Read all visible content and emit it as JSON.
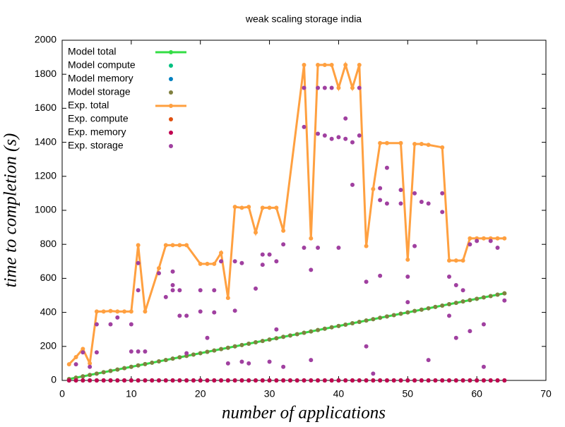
{
  "chart_data": {
    "type": "scatter",
    "title": "weak scaling storage india",
    "xlabel": "number of applications",
    "ylabel": "time to completion (s)",
    "xlim": [
      0,
      70
    ],
    "xticks": [
      0,
      10,
      20,
      30,
      40,
      50,
      60,
      70
    ],
    "ylim": [
      0,
      2000
    ],
    "yticks": [
      0,
      200,
      400,
      600,
      800,
      1000,
      1200,
      1400,
      1600,
      1800,
      2000
    ],
    "legend": "upper left",
    "series": [
      {
        "name": "Model total",
        "color": "#33dd44",
        "style": "linespoints",
        "x": [
          1,
          2,
          3,
          4,
          5,
          6,
          7,
          8,
          9,
          10,
          11,
          12,
          13,
          14,
          15,
          16,
          17,
          18,
          19,
          20,
          21,
          22,
          23,
          24,
          25,
          26,
          27,
          28,
          29,
          30,
          31,
          32,
          33,
          34,
          35,
          36,
          37,
          38,
          39,
          40,
          41,
          42,
          43,
          44,
          45,
          46,
          47,
          48,
          49,
          50,
          51,
          52,
          53,
          54,
          55,
          56,
          57,
          58,
          59,
          60,
          61,
          62,
          63,
          64
        ],
        "values": [
          8,
          16,
          24,
          32,
          40,
          48,
          56,
          64,
          72,
          80,
          88,
          96,
          104,
          112,
          120,
          128,
          136,
          144,
          152,
          160,
          168,
          176,
          184,
          192,
          200,
          208,
          216,
          224,
          232,
          240,
          248,
          256,
          264,
          272,
          280,
          288,
          296,
          304,
          312,
          320,
          328,
          336,
          344,
          352,
          360,
          368,
          376,
          384,
          392,
          400,
          408,
          416,
          424,
          432,
          440,
          448,
          456,
          464,
          472,
          480,
          488,
          496,
          504,
          512
        ]
      },
      {
        "name": "Model compute",
        "color": "#00c080",
        "style": "points",
        "x": [
          1,
          2,
          3,
          4,
          5,
          6,
          7,
          8,
          9,
          10,
          11,
          12,
          13,
          14,
          15,
          16,
          17,
          18,
          19,
          20,
          21,
          22,
          23,
          24,
          25,
          26,
          27,
          28,
          29,
          30,
          31,
          32,
          33,
          34,
          35,
          36,
          37,
          38,
          39,
          40,
          41,
          42,
          43,
          44,
          45,
          46,
          47,
          48,
          49,
          50,
          51,
          52,
          53,
          54,
          55,
          56,
          57,
          58,
          59,
          60,
          61,
          62,
          63,
          64
        ],
        "values": [
          0,
          0,
          0,
          0,
          0,
          0,
          0,
          0,
          0,
          0,
          0,
          0,
          0,
          0,
          0,
          0,
          0,
          0,
          0,
          0,
          0,
          0,
          0,
          0,
          0,
          0,
          0,
          0,
          0,
          0,
          0,
          0,
          0,
          0,
          0,
          0,
          0,
          0,
          0,
          0,
          0,
          0,
          0,
          0,
          0,
          0,
          0,
          0,
          0,
          0,
          0,
          0,
          0,
          0,
          0,
          0,
          0,
          0,
          0,
          0,
          0,
          0,
          0,
          0
        ]
      },
      {
        "name": "Model memory",
        "color": "#0080c0",
        "style": "points",
        "x": [
          1,
          2,
          3,
          4,
          5,
          6,
          7,
          8,
          9,
          10,
          11,
          12,
          13,
          14,
          15,
          16,
          17,
          18,
          19,
          20,
          21,
          22,
          23,
          24,
          25,
          26,
          27,
          28,
          29,
          30,
          31,
          32,
          33,
          34,
          35,
          36,
          37,
          38,
          39,
          40,
          41,
          42,
          43,
          44,
          45,
          46,
          47,
          48,
          49,
          50,
          51,
          52,
          53,
          54,
          55,
          56,
          57,
          58,
          59,
          60,
          61,
          62,
          63,
          64
        ],
        "values": [
          0,
          0,
          0,
          0,
          0,
          0,
          0,
          0,
          0,
          0,
          0,
          0,
          0,
          0,
          0,
          0,
          0,
          0,
          0,
          0,
          0,
          0,
          0,
          0,
          0,
          0,
          0,
          0,
          0,
          0,
          0,
          0,
          0,
          0,
          0,
          0,
          0,
          0,
          0,
          0,
          0,
          0,
          0,
          0,
          0,
          0,
          0,
          0,
          0,
          0,
          0,
          0,
          0,
          0,
          0,
          0,
          0,
          0,
          0,
          0,
          0,
          0,
          0,
          0
        ]
      },
      {
        "name": "Model storage",
        "color": "#808040",
        "style": "points",
        "x": [
          1,
          2,
          3,
          4,
          5,
          6,
          7,
          8,
          9,
          10,
          11,
          12,
          13,
          14,
          15,
          16,
          17,
          18,
          19,
          20,
          21,
          22,
          23,
          24,
          25,
          26,
          27,
          28,
          29,
          30,
          31,
          32,
          33,
          34,
          35,
          36,
          37,
          38,
          39,
          40,
          41,
          42,
          43,
          44,
          45,
          46,
          47,
          48,
          49,
          50,
          51,
          52,
          53,
          54,
          55,
          56,
          57,
          58,
          59,
          60,
          61,
          62,
          63,
          64
        ],
        "values": [
          8,
          16,
          24,
          32,
          40,
          48,
          56,
          64,
          72,
          80,
          88,
          96,
          104,
          112,
          120,
          128,
          136,
          144,
          152,
          160,
          168,
          176,
          184,
          192,
          200,
          208,
          216,
          224,
          232,
          240,
          248,
          256,
          264,
          272,
          280,
          288,
          296,
          304,
          312,
          320,
          328,
          336,
          344,
          352,
          360,
          368,
          376,
          384,
          392,
          400,
          408,
          416,
          424,
          432,
          440,
          448,
          456,
          464,
          472,
          480,
          488,
          496,
          504,
          512
        ]
      },
      {
        "name": "Exp.  total",
        "color": "#ffa040",
        "style": "linespoints",
        "x": [
          1,
          2,
          3,
          4,
          5,
          6,
          7,
          8,
          9,
          10,
          11,
          12,
          14,
          15,
          16,
          17,
          18,
          20,
          21,
          22,
          23,
          24,
          25,
          26,
          27,
          28,
          29,
          30,
          31,
          32,
          35,
          36,
          37,
          38,
          39,
          40,
          41,
          42,
          43,
          44,
          45,
          46,
          47,
          49,
          50,
          51,
          52,
          53,
          55,
          56,
          57,
          58,
          59,
          60,
          61,
          62,
          63,
          64
        ],
        "values": [
          95,
          137,
          185,
          100,
          405,
          405,
          408,
          405,
          405,
          405,
          795,
          405,
          660,
          795,
          795,
          795,
          795,
          685,
          685,
          685,
          750,
          485,
          1020,
          1015,
          1020,
          870,
          1015,
          1015,
          1015,
          880,
          1855,
          835,
          1855,
          1855,
          1855,
          1720,
          1855,
          1720,
          1855,
          790,
          1125,
          1395,
          1395,
          1395,
          710,
          1390,
          1390,
          1385,
          1370,
          705,
          705,
          705,
          835,
          835,
          835,
          835,
          835,
          835
        ]
      },
      {
        "name": "Exp.  compute",
        "color": "#e05010",
        "style": "points",
        "x": [
          1,
          2,
          3,
          4,
          5,
          6,
          7,
          8,
          9,
          10,
          11,
          12,
          13,
          14,
          15,
          16,
          17,
          18,
          19,
          20,
          21,
          22,
          23,
          24,
          25,
          26,
          27,
          28,
          29,
          30,
          31,
          32,
          33,
          34,
          35,
          36,
          37,
          38,
          39,
          40,
          41,
          42,
          43,
          44,
          45,
          46,
          47,
          48,
          49,
          50,
          51,
          52,
          53,
          54,
          55,
          56,
          57,
          58,
          59,
          60,
          61,
          62,
          63,
          64
        ],
        "values": [
          0,
          0,
          0,
          0,
          0,
          0,
          0,
          0,
          0,
          0,
          0,
          0,
          0,
          0,
          0,
          0,
          0,
          0,
          0,
          0,
          0,
          0,
          0,
          0,
          0,
          0,
          0,
          0,
          0,
          0,
          0,
          0,
          0,
          0,
          0,
          0,
          0,
          0,
          0,
          0,
          0,
          0,
          0,
          0,
          0,
          0,
          0,
          0,
          0,
          0,
          0,
          0,
          0,
          0,
          0,
          0,
          0,
          0,
          0,
          0,
          0,
          0,
          0,
          0
        ]
      },
      {
        "name": "Exp.  memory",
        "color": "#c00050",
        "style": "points",
        "x": [
          1,
          2,
          3,
          4,
          5,
          6,
          7,
          8,
          9,
          10,
          11,
          12,
          13,
          14,
          15,
          16,
          17,
          18,
          19,
          20,
          21,
          22,
          23,
          24,
          25,
          26,
          27,
          28,
          29,
          30,
          31,
          32,
          33,
          34,
          35,
          36,
          37,
          38,
          39,
          40,
          41,
          42,
          43,
          44,
          45,
          46,
          47,
          48,
          49,
          50,
          51,
          52,
          53,
          54,
          55,
          56,
          57,
          58,
          59,
          60,
          61,
          62,
          63,
          64
        ],
        "values": [
          0,
          0,
          0,
          0,
          0,
          0,
          0,
          0,
          0,
          0,
          0,
          0,
          0,
          0,
          0,
          0,
          0,
          0,
          0,
          0,
          0,
          0,
          0,
          0,
          0,
          0,
          0,
          0,
          0,
          0,
          0,
          0,
          0,
          0,
          0,
          0,
          0,
          0,
          0,
          0,
          0,
          0,
          0,
          0,
          0,
          0,
          0,
          0,
          0,
          0,
          0,
          0,
          0,
          0,
          0,
          0,
          0,
          0,
          0,
          0,
          0,
          0,
          0,
          0
        ]
      },
      {
        "name": "Exp.  storage",
        "color": "#a040a0",
        "style": "points",
        "x": [
          2,
          3,
          4,
          5,
          5,
          7,
          8,
          10,
          10,
          11,
          11,
          11,
          12,
          14,
          15,
          16,
          16,
          16,
          17,
          17,
          18,
          18,
          20,
          20,
          21,
          22,
          22,
          23,
          24,
          25,
          25,
          26,
          26,
          27,
          28,
          29,
          29,
          30,
          30,
          31,
          31,
          32,
          32,
          35,
          35,
          35,
          36,
          36,
          37,
          37,
          37,
          38,
          38,
          39,
          39,
          40,
          40,
          41,
          41,
          42,
          42,
          43,
          43,
          44,
          44,
          45,
          46,
          46,
          46,
          47,
          47,
          49,
          49,
          50,
          50,
          51,
          51,
          52,
          53,
          53,
          55,
          55,
          56,
          56,
          57,
          57,
          58,
          59,
          59,
          60,
          61,
          61,
          62,
          63,
          64
        ],
        "values": [
          95,
          165,
          80,
          165,
          330,
          330,
          370,
          170,
          330,
          690,
          530,
          170,
          170,
          630,
          490,
          640,
          560,
          530,
          530,
          380,
          380,
          160,
          405,
          530,
          250,
          400,
          530,
          700,
          100,
          410,
          700,
          110,
          690,
          100,
          540,
          740,
          680,
          740,
          110,
          700,
          300,
          800,
          80,
          1720,
          1490,
          780,
          650,
          120,
          1720,
          1450,
          780,
          1720,
          1440,
          1720,
          1420,
          1430,
          780,
          1540,
          1420,
          1150,
          1400,
          1440,
          1720,
          580,
          200,
          40,
          615,
          1130,
          1060,
          1250,
          1040,
          1120,
          1040,
          610,
          460,
          790,
          1100,
          1050,
          1040,
          120,
          1100,
          990,
          610,
          380,
          560,
          250,
          530,
          290,
          800,
          820,
          330,
          80,
          820,
          780,
          470
        ]
      }
    ]
  }
}
